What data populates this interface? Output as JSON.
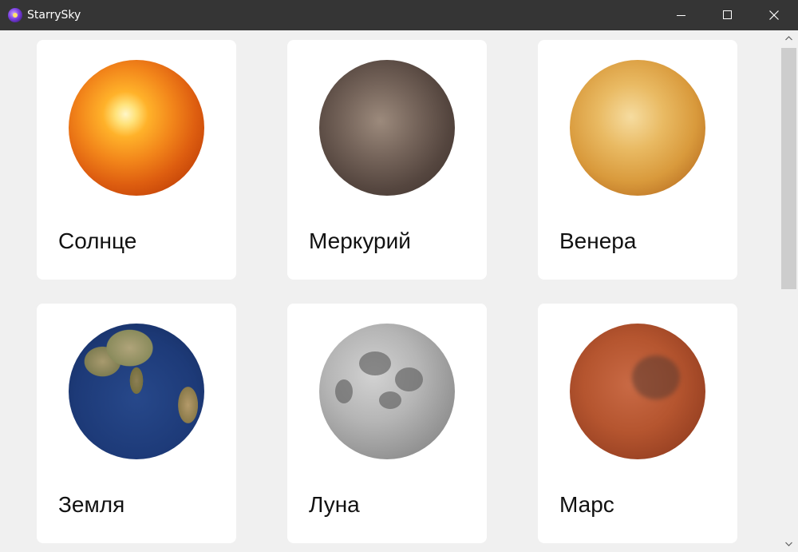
{
  "window": {
    "title": "StarrySky"
  },
  "planets": [
    {
      "name": "Солнце"
    },
    {
      "name": "Меркурий"
    },
    {
      "name": "Венера"
    },
    {
      "name": "Земля"
    },
    {
      "name": "Луна"
    },
    {
      "name": "Марс"
    }
  ],
  "icons": {
    "app": "app-icon",
    "minimize": "minimize-icon",
    "maximize": "maximize-icon",
    "close": "close-icon",
    "scroll_up": "chevron-up-icon",
    "scroll_down": "chevron-down-icon"
  },
  "colors": {
    "titlebar": "#353535",
    "background": "#f0f0f0",
    "card": "#ffffff"
  }
}
